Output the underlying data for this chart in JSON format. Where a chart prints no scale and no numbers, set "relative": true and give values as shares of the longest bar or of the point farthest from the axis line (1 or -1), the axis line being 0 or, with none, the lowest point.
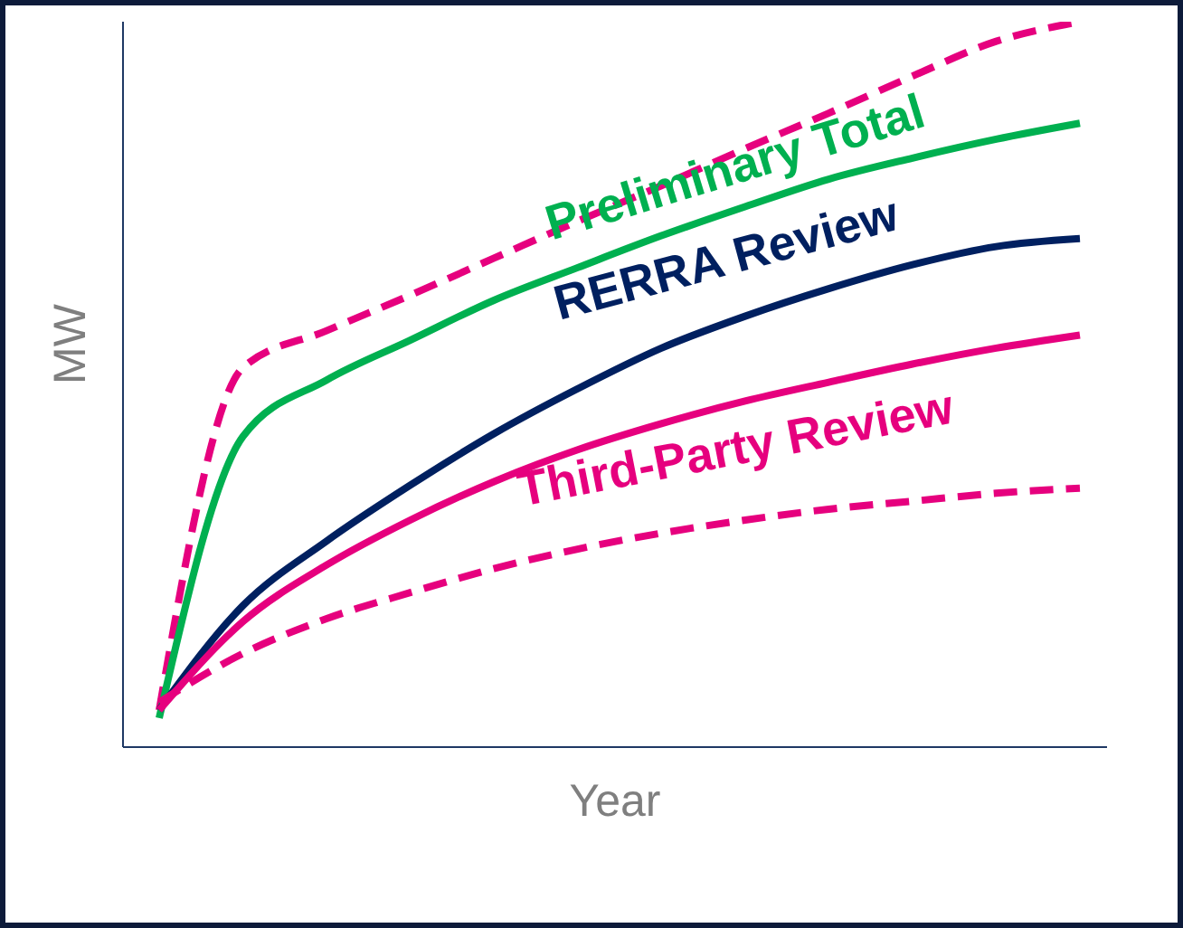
{
  "chart_data": {
    "type": "line",
    "relative": true,
    "xlabel": "Year",
    "ylabel": "MW",
    "line_style": "solid",
    "marker": "none",
    "grid": false,
    "legend": false,
    "categories": [
      null,
      null,
      null,
      null,
      null,
      null,
      null,
      null,
      null,
      null,
      null,
      null
    ],
    "series": [
      {
        "color": "#e6007e",
        "line_style": "dashed",
        "values": [
          0.051,
          0.523,
          0.574,
          0.623,
          0.674,
          0.725,
          0.774,
          0.825,
          0.874,
          0.925,
          0.973,
          1
        ]
      },
      {
        "name": "Preliminary Total",
        "color": "#00b050",
        "values": [
          0.04,
          0.428,
          0.506,
          0.561,
          0.616,
          0.661,
          0.705,
          0.745,
          0.783,
          0.812,
          0.838,
          0.86
        ]
      },
      {
        "name": "RERRA Review",
        "color": "#002060",
        "values": [
          0.051,
          0.195,
          0.284,
          0.361,
          0.432,
          0.494,
          0.55,
          0.594,
          0.632,
          0.665,
          0.69,
          0.701
        ]
      },
      {
        "name": "Third-Party Review",
        "color": "#e6007e",
        "values": [
          0.051,
          0.173,
          0.251,
          0.313,
          0.366,
          0.41,
          0.446,
          0.477,
          0.503,
          0.528,
          0.55,
          0.568
        ]
      },
      {
        "color": "#e6007e",
        "line_style": "dashed",
        "values": [
          0.062,
          0.129,
          0.177,
          0.213,
          0.246,
          0.273,
          0.295,
          0.313,
          0.328,
          0.339,
          0.35,
          0.357
        ]
      }
    ]
  }
}
